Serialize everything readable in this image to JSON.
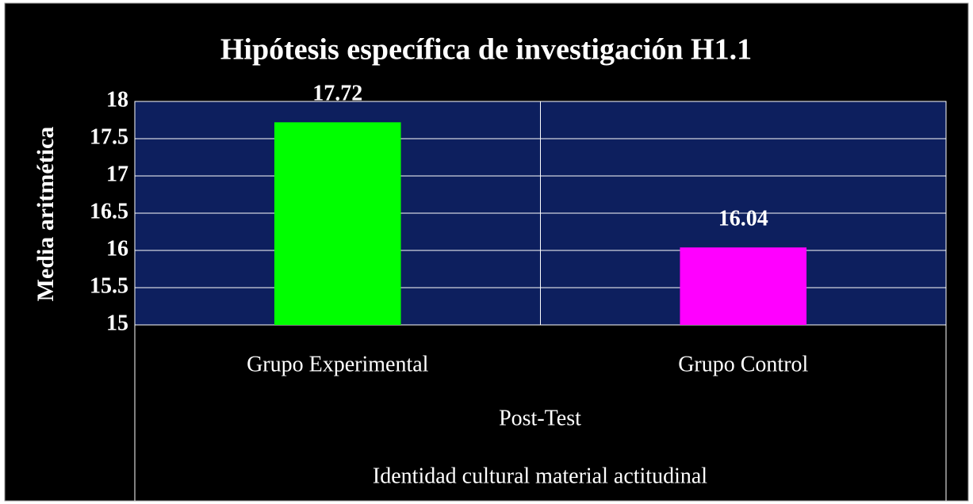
{
  "chart_data": {
    "type": "bar",
    "title": "Hipótesis específica de investigación H1.1",
    "ylabel": "Media aritmética",
    "categories": [
      "Grupo Experimental",
      "Grupo Control"
    ],
    "category_group": "Post-Test",
    "xlabel": "Identidad cultural material actitudinal",
    "values": [
      17.72,
      16.04
    ],
    "colors": [
      "#00ff00",
      "#ff00ff"
    ],
    "ylim": [
      15,
      18
    ],
    "yticks": [
      15,
      15.5,
      16,
      16.5,
      17,
      17.5,
      18
    ],
    "grid": true
  }
}
